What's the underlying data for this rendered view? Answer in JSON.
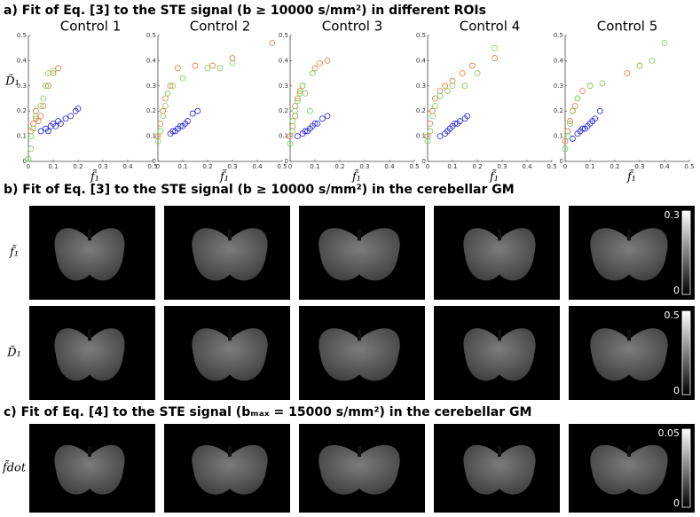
{
  "chart_data": [
    {
      "type": "scatter",
      "title": "Control 1",
      "x_label": "f̃₁",
      "y_label": "D̃₁",
      "xlim": [
        0,
        0.5
      ],
      "ylim": [
        0,
        0.5
      ],
      "xticks": [
        0,
        0.1,
        0.2,
        0.3,
        0.4,
        0.5
      ],
      "yticks": [
        0,
        0.1,
        0.2,
        0.3,
        0.4,
        0.5
      ],
      "series": [
        {
          "color": "#2222dd",
          "x": [
            0.05,
            0.07,
            0.08,
            0.09,
            0.1,
            0.11,
            0.12,
            0.13,
            0.15,
            0.17,
            0.19,
            0.2
          ],
          "values": [
            0.12,
            0.13,
            0.12,
            0.14,
            0.15,
            0.14,
            0.16,
            0.15,
            0.17,
            0.18,
            0.2,
            0.21
          ]
        },
        {
          "color": "#e07a3a",
          "x": [
            0.01,
            0.02,
            0.03,
            0.03,
            0.04,
            0.05,
            0.06,
            0.08,
            0.1,
            0.12
          ],
          "values": [
            0.12,
            0.15,
            0.17,
            0.2,
            0.16,
            0.18,
            0.22,
            0.3,
            0.35,
            0.37
          ]
        },
        {
          "color": "#77d04e",
          "x": [
            0,
            0.01,
            0.01,
            0.02,
            0.03,
            0.05,
            0.06,
            0.07,
            0.08,
            0.1
          ],
          "values": [
            0.01,
            0.05,
            0.1,
            0.13,
            0.18,
            0.22,
            0.25,
            0.3,
            0.35,
            0.36
          ]
        }
      ]
    },
    {
      "type": "scatter",
      "title": "Control 2",
      "x_label": "f̃₁",
      "xlim": [
        0,
        0.5
      ],
      "ylim": [
        0,
        0.5
      ],
      "xticks": [
        0,
        0.1,
        0.2,
        0.3,
        0.4,
        0.5
      ],
      "yticks": [
        0,
        0.1,
        0.2,
        0.3,
        0.4,
        0.5
      ],
      "series": [
        {
          "color": "#2222dd",
          "x": [
            0.05,
            0.06,
            0.07,
            0.08,
            0.09,
            0.1,
            0.11,
            0.12,
            0.14,
            0.16
          ],
          "values": [
            0.11,
            0.12,
            0.12,
            0.13,
            0.14,
            0.14,
            0.15,
            0.16,
            0.19,
            0.2
          ]
        },
        {
          "color": "#e07a3a",
          "x": [
            0,
            0.01,
            0.02,
            0.03,
            0.05,
            0.08,
            0.15,
            0.22,
            0.3,
            0.46
          ],
          "values": [
            0.1,
            0.15,
            0.2,
            0.25,
            0.3,
            0.37,
            0.38,
            0.38,
            0.41,
            0.47
          ]
        },
        {
          "color": "#77d04e",
          "x": [
            0,
            0.01,
            0.02,
            0.03,
            0.04,
            0.06,
            0.1,
            0.2,
            0.25,
            0.3
          ],
          "values": [
            0.08,
            0.12,
            0.18,
            0.22,
            0.27,
            0.3,
            0.33,
            0.37,
            0.37,
            0.39
          ]
        }
      ]
    },
    {
      "type": "scatter",
      "title": "Control 3",
      "x_label": "f̃₁",
      "xlim": [
        0,
        0.5
      ],
      "ylim": [
        0,
        0.5
      ],
      "xticks": [
        0,
        0.1,
        0.2,
        0.3,
        0.4,
        0.5
      ],
      "yticks": [
        0,
        0.1,
        0.2,
        0.3,
        0.4,
        0.5
      ],
      "series": [
        {
          "color": "#2222dd",
          "x": [
            0.03,
            0.05,
            0.06,
            0.07,
            0.08,
            0.09,
            0.1,
            0.11,
            0.13,
            0.15
          ],
          "values": [
            0.1,
            0.11,
            0.12,
            0.12,
            0.13,
            0.14,
            0.15,
            0.15,
            0.17,
            0.18
          ]
        },
        {
          "color": "#e07a3a",
          "x": [
            0,
            0.01,
            0.02,
            0.02,
            0.03,
            0.04,
            0.05,
            0.1,
            0.12,
            0.15
          ],
          "values": [
            0.1,
            0.14,
            0.18,
            0.22,
            0.25,
            0.28,
            0.3,
            0.37,
            0.39,
            0.4
          ]
        },
        {
          "color": "#77d04e",
          "x": [
            0,
            0.01,
            0.01,
            0.02,
            0.03,
            0.04,
            0.05,
            0.06,
            0.08,
            0.09
          ],
          "values": [
            0.07,
            0.12,
            0.16,
            0.2,
            0.24,
            0.27,
            0.3,
            0.27,
            0.2,
            0.35
          ]
        }
      ]
    },
    {
      "type": "scatter",
      "title": "Control 4",
      "x_label": "f̃₁",
      "xlim": [
        0,
        0.5
      ],
      "ylim": [
        0,
        0.5
      ],
      "xticks": [
        0,
        0.1,
        0.2,
        0.3,
        0.4,
        0.5
      ],
      "yticks": [
        0,
        0.1,
        0.2,
        0.3,
        0.4,
        0.5
      ],
      "series": [
        {
          "color": "#2222dd",
          "x": [
            0.05,
            0.07,
            0.08,
            0.09,
            0.1,
            0.11,
            0.12,
            0.13,
            0.15,
            0.16
          ],
          "values": [
            0.1,
            0.11,
            0.12,
            0.13,
            0.14,
            0.15,
            0.15,
            0.16,
            0.17,
            0.18
          ]
        },
        {
          "color": "#e07a3a",
          "x": [
            0,
            0.01,
            0.02,
            0.03,
            0.05,
            0.07,
            0.1,
            0.14,
            0.18,
            0.27
          ],
          "values": [
            0.1,
            0.15,
            0.2,
            0.25,
            0.28,
            0.3,
            0.32,
            0.35,
            0.38,
            0.41
          ]
        },
        {
          "color": "#77d04e",
          "x": [
            0,
            0.01,
            0.02,
            0.03,
            0.05,
            0.08,
            0.1,
            0.15,
            0.2,
            0.27
          ],
          "values": [
            0.08,
            0.12,
            0.18,
            0.22,
            0.26,
            0.28,
            0.3,
            0.3,
            0.35,
            0.45
          ]
        }
      ]
    },
    {
      "type": "scatter",
      "title": "Control 5",
      "x_label": "f̃₁",
      "xlim": [
        0,
        0.5
      ],
      "ylim": [
        0,
        0.5
      ],
      "xticks": [
        0,
        0.1,
        0.2,
        0.3,
        0.4,
        0.5
      ],
      "yticks": [
        0,
        0.1,
        0.2,
        0.3,
        0.4,
        0.5
      ],
      "series": [
        {
          "color": "#2222dd",
          "x": [
            0.03,
            0.05,
            0.06,
            0.07,
            0.08,
            0.09,
            0.1,
            0.11,
            0.12,
            0.14
          ],
          "values": [
            0.09,
            0.11,
            0.12,
            0.13,
            0.13,
            0.14,
            0.15,
            0.16,
            0.17,
            0.2
          ]
        },
        {
          "color": "#e07a3a",
          "x": [
            0,
            0.01,
            0.02,
            0.03,
            0.04,
            0.05,
            0.07,
            0.1,
            0.25,
            0.3
          ],
          "values": [
            0.08,
            0.12,
            0.16,
            0.2,
            0.22,
            0.25,
            0.28,
            0.3,
            0.35,
            0.38
          ]
        },
        {
          "color": "#77d04e",
          "x": [
            0,
            0.01,
            0.02,
            0.03,
            0.05,
            0.1,
            0.15,
            0.3,
            0.35,
            0.4
          ],
          "values": [
            0.05,
            0.1,
            0.15,
            0.2,
            0.25,
            0.3,
            0.31,
            0.38,
            0.4,
            0.47
          ]
        }
      ]
    }
  ],
  "panel_a": {
    "title": "a) Fit of Eq. [3] to the STE signal (b ≥ 10000 s/mm²) in different ROIs"
  },
  "panel_b": {
    "title": "b) Fit of Eq. [3] to the STE signal (b ≥ 10000 s/mm²) in the cerebellar GM",
    "rows": [
      {
        "label": "f̃₁",
        "colorbar": [
          0,
          0.3
        ]
      },
      {
        "label": "D̃₁",
        "colorbar": [
          0,
          0.5
        ]
      }
    ]
  },
  "panel_c": {
    "title": "c) Fit of Eq. [4] to the STE signal (bₘₐₓ = 15000 s/mm²) in the cerebellar GM",
    "rows": [
      {
        "label": "f̃dot",
        "colorbar": [
          0,
          0.05
        ]
      }
    ]
  }
}
